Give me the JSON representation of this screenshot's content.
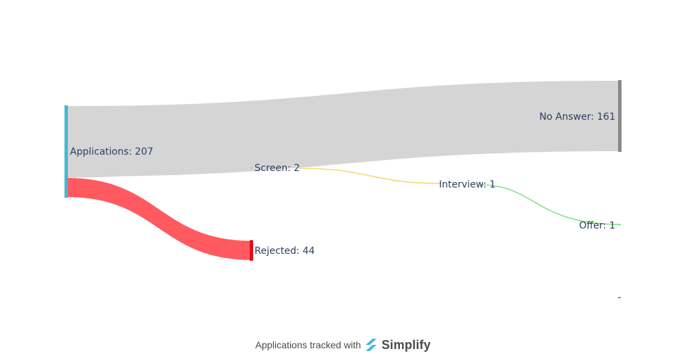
{
  "nodes": {
    "applications": {
      "label": "Applications: 207",
      "color": "#45b8d1"
    },
    "screen": {
      "label": "Screen: 2",
      "color": "#cccccc"
    },
    "rejected": {
      "label": "Rejected: 44",
      "color": "#e01010"
    },
    "no_answer": {
      "label": "No Answer: 161",
      "color": "#888888"
    },
    "interview": {
      "label": "Interview: 1",
      "color": "#f7d774"
    },
    "offer": {
      "label": "Offer: 1",
      "color": "#86e086"
    }
  },
  "links": [
    {
      "from": "Applications",
      "to": "No Answer",
      "value": 161,
      "color": "#d3d3d3"
    },
    {
      "from": "Applications",
      "to": "Rejected",
      "value": 44,
      "color": "#ff5a5f"
    },
    {
      "from": "Applications",
      "to": "Screen",
      "value": 2,
      "color": "#d3d3d3"
    },
    {
      "from": "Screen",
      "to": "Interview",
      "value": 1,
      "color": "#f7d774"
    },
    {
      "from": "Interview",
      "to": "Offer",
      "value": 1,
      "color": "#86e086"
    }
  ],
  "footer": {
    "text": "Applications tracked with",
    "brand": "Simplify",
    "brand_icon": "simplify-logo-icon",
    "brand_color": "#45b8d1"
  }
}
